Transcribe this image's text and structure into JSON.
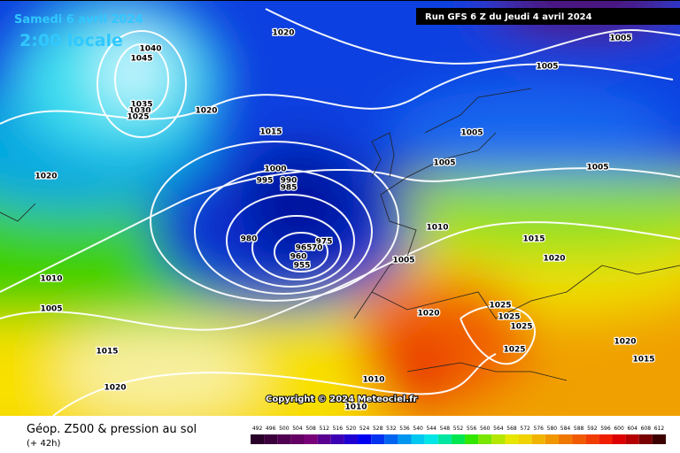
{
  "header": {
    "date": "Samedi 6 avril 2024",
    "time": "2:00 locale",
    "run": "Run GFS 6 Z du Jeudi 4 avril 2024"
  },
  "copyright": "Copyright © 2024 Meteociel.fr",
  "legend": {
    "title": "Géop. Z500 & pression au sol",
    "lead": "(+ 42h)",
    "scale": [
      492,
      496,
      500,
      504,
      508,
      512,
      516,
      520,
      524,
      528,
      532,
      536,
      540,
      544,
      548,
      552,
      556,
      560,
      564,
      568,
      572,
      576,
      580,
      584,
      588,
      592,
      596,
      600,
      604,
      608,
      612
    ]
  },
  "isobar_labels": [
    1020,
    1040,
    1045,
    1035,
    1030,
    1025,
    1020,
    1015,
    1020,
    1000,
    995,
    990,
    985,
    980,
    975,
    970,
    965,
    960,
    955,
    1010,
    1005,
    1015,
    1020,
    1005,
    1005,
    1005,
    1005,
    1005,
    1010,
    1005,
    1015,
    1020,
    1020,
    1025,
    1025,
    1025,
    1025,
    1020,
    1015,
    1010,
    1010
  ]
}
